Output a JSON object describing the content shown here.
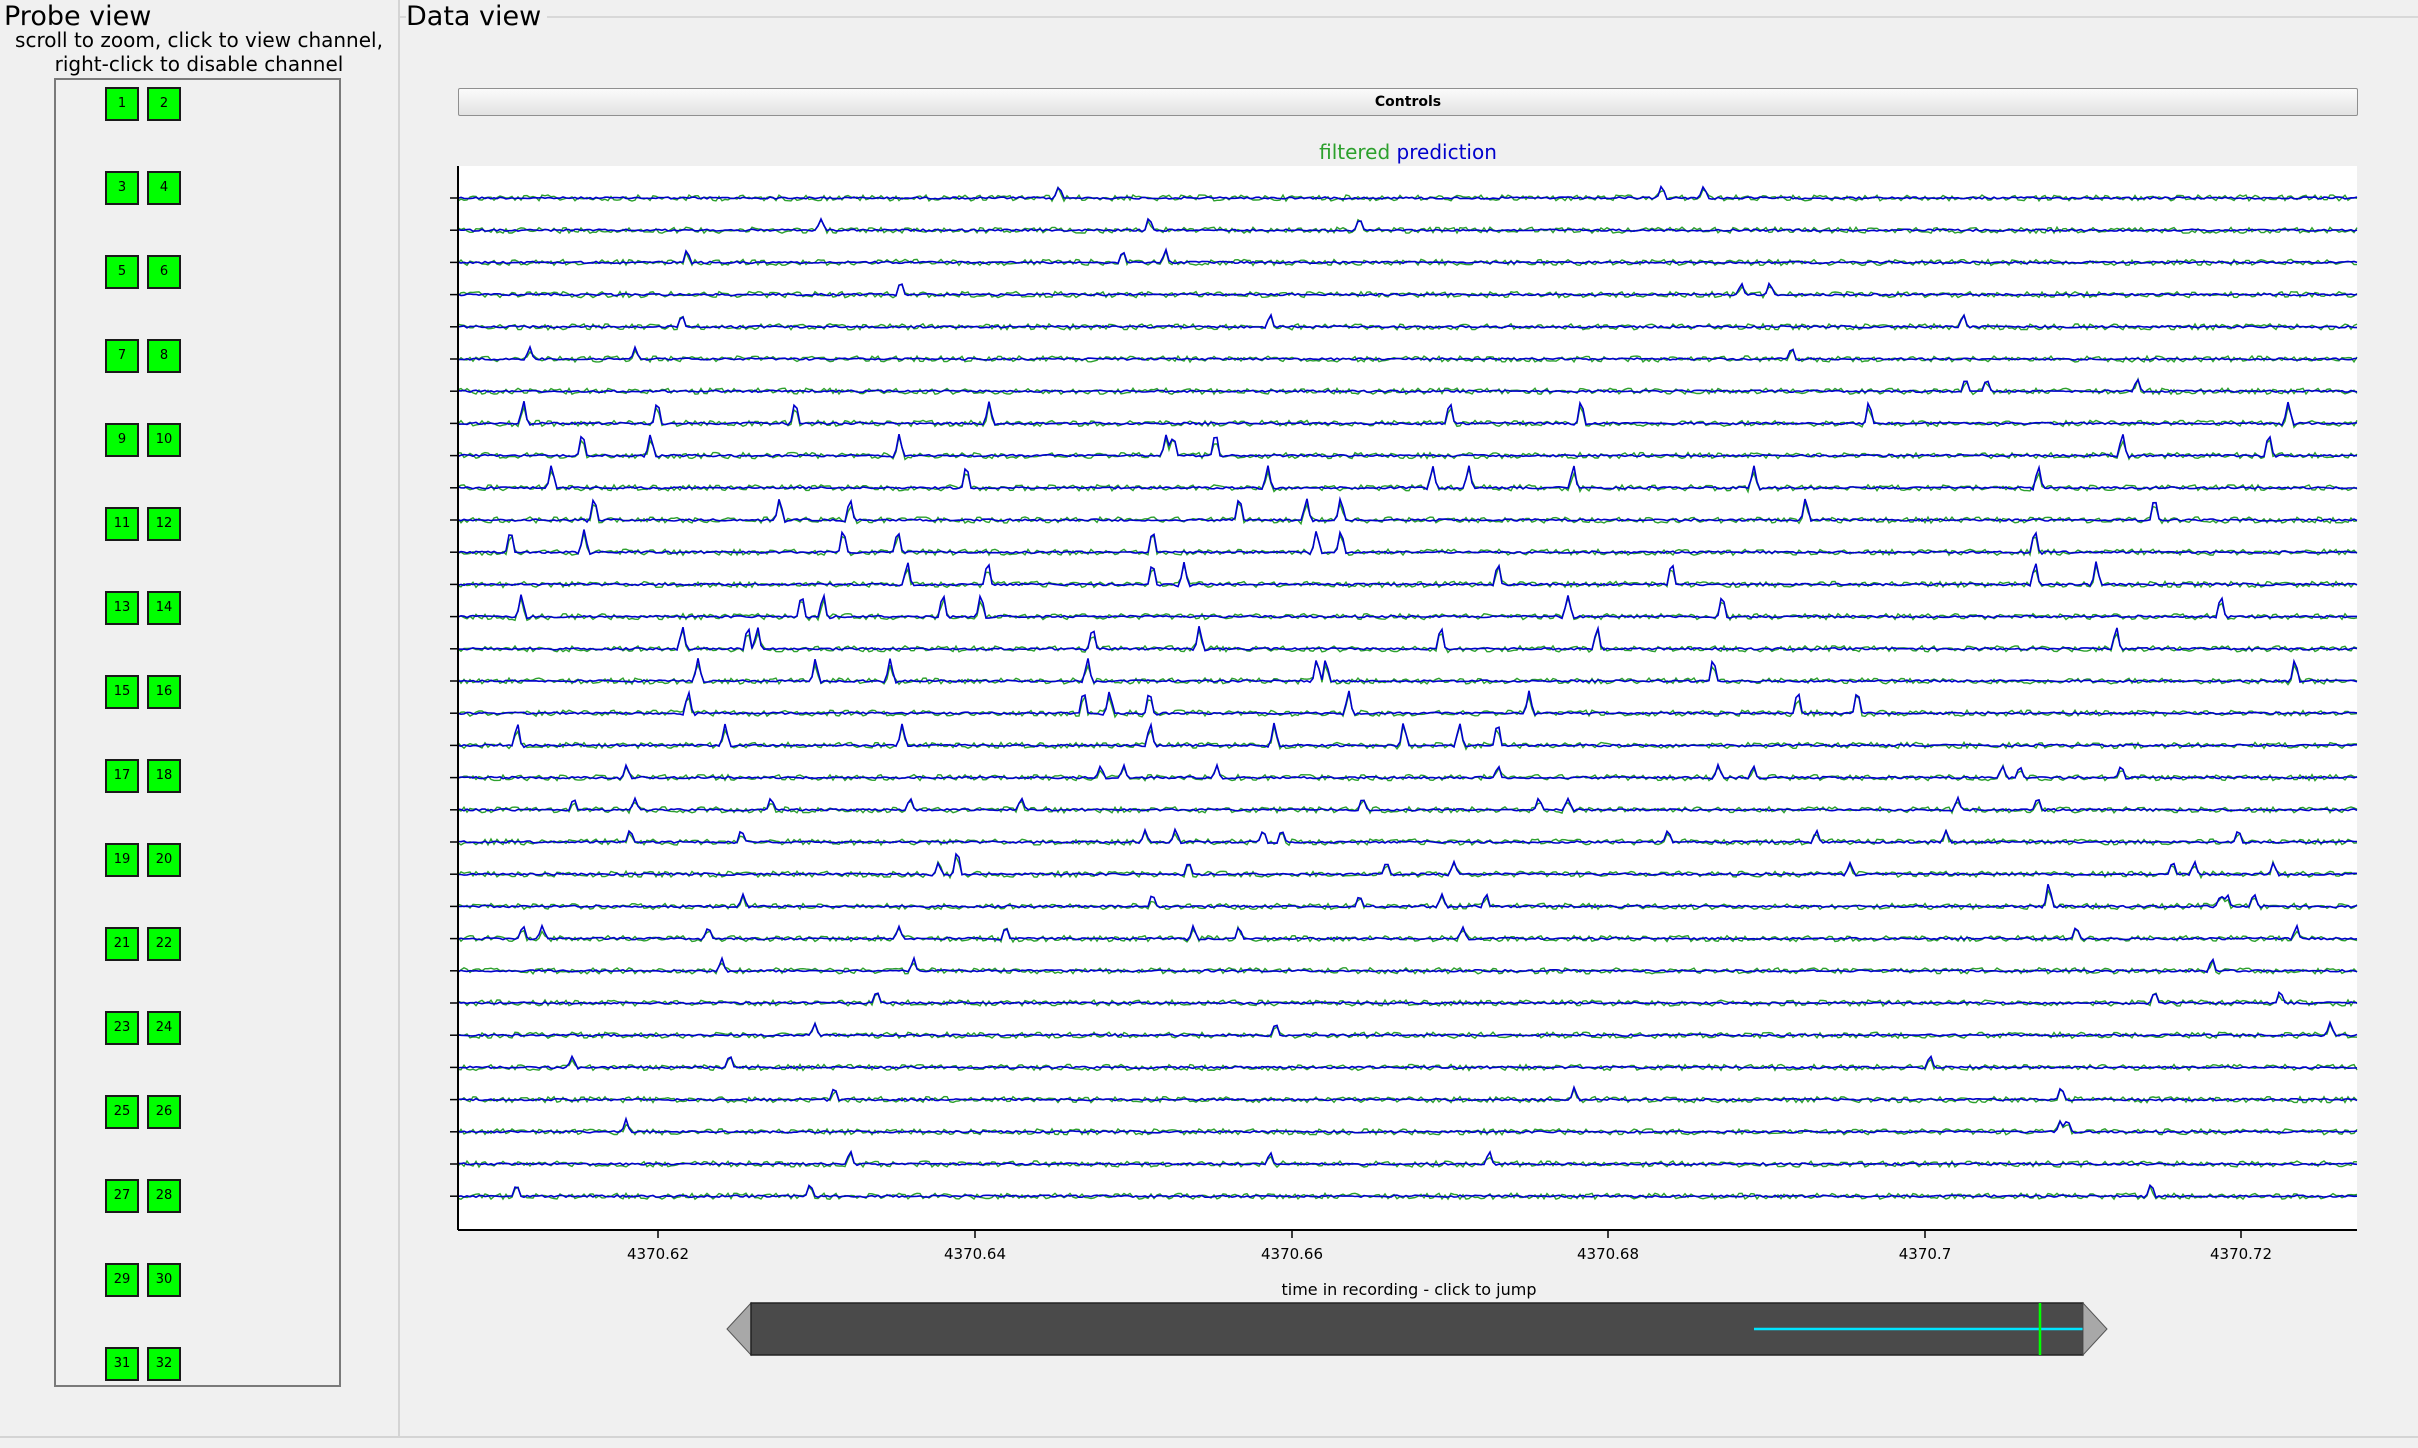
{
  "probe_view": {
    "title": "Probe view",
    "hint_line1": "scroll to zoom, click to view channel,",
    "hint_line2": "right-click to disable channel",
    "channels": [
      "1",
      "2",
      "3",
      "4",
      "5",
      "6",
      "7",
      "8",
      "9",
      "10",
      "11",
      "12",
      "13",
      "14",
      "15",
      "16",
      "17",
      "18",
      "19",
      "20",
      "21",
      "22",
      "23",
      "24",
      "25",
      "26",
      "27",
      "28",
      "29",
      "30",
      "31",
      "32"
    ],
    "channel_color": "#00ff00"
  },
  "data_view": {
    "title": "Data view",
    "controls_label": "Controls",
    "legend": {
      "filtered": "filtered",
      "prediction": "prediction"
    },
    "colors": {
      "filtered": "#2ca02c",
      "prediction": "#0000cc"
    },
    "x_ticks": [
      "4370.62",
      "4370.64",
      "4370.66",
      "4370.68",
      "4370.7",
      "4370.72"
    ],
    "timeline_label": "time in recording - click to jump"
  }
}
